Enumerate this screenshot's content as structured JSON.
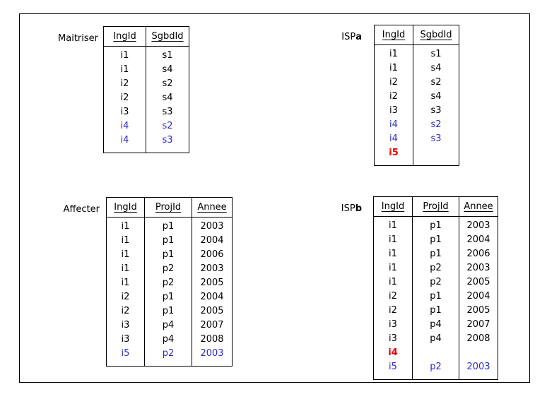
{
  "page": {
    "background": "#ffffff",
    "frame_border_color": "#000000"
  },
  "colors": {
    "text_default": "#000000",
    "row_highlight_blue": "#2b2bcc",
    "row_highlight_red": "#ee0000"
  },
  "tables": [
    {
      "id": "maitriser",
      "label_main": "Maitriser",
      "label_bold": "",
      "columns": [
        "IngId",
        "SgbdId"
      ],
      "rows": [
        {
          "cells": [
            "i1",
            "s1"
          ],
          "color": "default"
        },
        {
          "cells": [
            "i1",
            "s4"
          ],
          "color": "default"
        },
        {
          "cells": [
            "i2",
            "s2"
          ],
          "color": "default"
        },
        {
          "cells": [
            "i2",
            "s4"
          ],
          "color": "default"
        },
        {
          "cells": [
            "i3",
            "s3"
          ],
          "color": "default"
        },
        {
          "cells": [
            "i4",
            "s2"
          ],
          "color": "blue"
        },
        {
          "cells": [
            "i4",
            "s3"
          ],
          "color": "blue"
        }
      ]
    },
    {
      "id": "ispa",
      "label_main": "ISP",
      "label_bold": "a",
      "columns": [
        "IngId",
        "SgbdId"
      ],
      "rows": [
        {
          "cells": [
            "i1",
            "s1"
          ],
          "color": "default"
        },
        {
          "cells": [
            "i1",
            "s4"
          ],
          "color": "default"
        },
        {
          "cells": [
            "i2",
            "s2"
          ],
          "color": "default"
        },
        {
          "cells": [
            "i2",
            "s4"
          ],
          "color": "default"
        },
        {
          "cells": [
            "i3",
            "s3"
          ],
          "color": "default"
        },
        {
          "cells": [
            "i4",
            "s2"
          ],
          "color": "blue"
        },
        {
          "cells": [
            "i4",
            "s3"
          ],
          "color": "blue"
        },
        {
          "cells": [
            "i5",
            ""
          ],
          "color": "red"
        }
      ]
    },
    {
      "id": "affecter",
      "label_main": "Affecter",
      "label_bold": "",
      "columns": [
        "IngId",
        "ProjId",
        "Annee"
      ],
      "rows": [
        {
          "cells": [
            "i1",
            "p1",
            "2003"
          ],
          "color": "default"
        },
        {
          "cells": [
            "i1",
            "p1",
            "2004"
          ],
          "color": "default"
        },
        {
          "cells": [
            "i1",
            "p1",
            "2006"
          ],
          "color": "default"
        },
        {
          "cells": [
            "i1",
            "p2",
            "2003"
          ],
          "color": "default"
        },
        {
          "cells": [
            "i1",
            "p2",
            "2005"
          ],
          "color": "default"
        },
        {
          "cells": [
            "i2",
            "p1",
            "2004"
          ],
          "color": "default"
        },
        {
          "cells": [
            "i2",
            "p1",
            "2005"
          ],
          "color": "default"
        },
        {
          "cells": [
            "i3",
            "p4",
            "2007"
          ],
          "color": "default"
        },
        {
          "cells": [
            "i3",
            "p4",
            "2008"
          ],
          "color": "default"
        },
        {
          "cells": [
            "i5",
            "p2",
            "2003"
          ],
          "color": "blue"
        }
      ]
    },
    {
      "id": "ispb",
      "label_main": "ISP",
      "label_bold": "b",
      "columns": [
        "IngId",
        "ProjId",
        "Annee"
      ],
      "rows": [
        {
          "cells": [
            "i1",
            "p1",
            "2003"
          ],
          "color": "default"
        },
        {
          "cells": [
            "i1",
            "p1",
            "2004"
          ],
          "color": "default"
        },
        {
          "cells": [
            "i1",
            "p1",
            "2006"
          ],
          "color": "default"
        },
        {
          "cells": [
            "i1",
            "p2",
            "2003"
          ],
          "color": "default"
        },
        {
          "cells": [
            "i1",
            "p2",
            "2005"
          ],
          "color": "default"
        },
        {
          "cells": [
            "i2",
            "p1",
            "2004"
          ],
          "color": "default"
        },
        {
          "cells": [
            "i2",
            "p1",
            "2005"
          ],
          "color": "default"
        },
        {
          "cells": [
            "i3",
            "p4",
            "2007"
          ],
          "color": "default"
        },
        {
          "cells": [
            "i3",
            "p4",
            "2008"
          ],
          "color": "default"
        },
        {
          "cells": [
            "i4",
            "",
            ""
          ],
          "color": "red"
        },
        {
          "cells": [
            "i5",
            "p2",
            "2003"
          ],
          "color": "blue"
        }
      ]
    }
  ]
}
